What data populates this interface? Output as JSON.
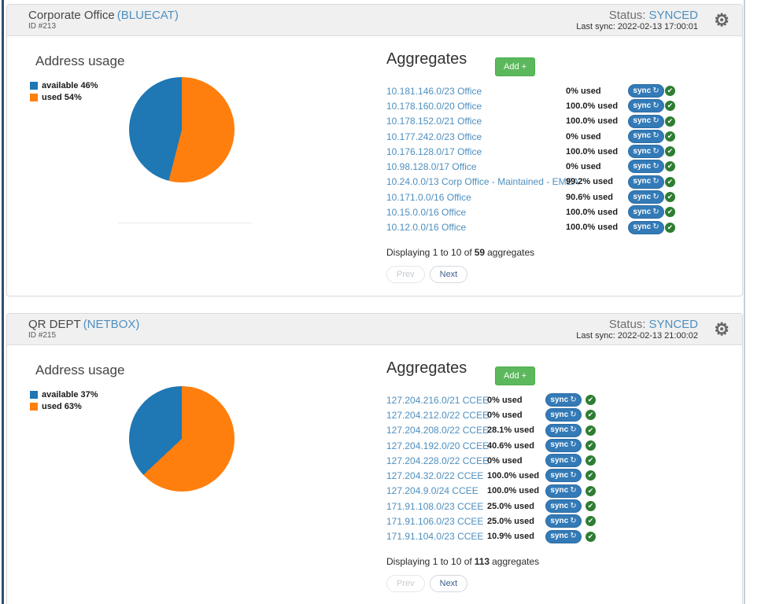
{
  "page": {
    "left_stripe_color": "#2f4f72",
    "right_stripe_color": "#bcd2e2",
    "accent_blue": "#4e8fbf",
    "sync_button_color": "#337ab7",
    "add_button_color": "#5cb85c",
    "check_color": "#2e7d32"
  },
  "labels": {
    "address_usage": "Address usage",
    "aggregates": "Aggregates",
    "add": "Add +",
    "sync": "sync",
    "status": "Status:",
    "prev": "Prev",
    "next": "Next"
  },
  "icons": {
    "sync": "↻",
    "gear": "⚙",
    "check": "✔"
  },
  "panels": [
    {
      "title": "Corporate Office",
      "source": "(BLUECAT)",
      "id": "ID #213",
      "status_value": "SYNCED",
      "last_sync": "Last sync: 2022-02-13 17:00:01",
      "chart": {
        "type": "pie",
        "available_pct": 46,
        "used_pct": 54,
        "available_color": "#1f77b4",
        "used_color": "#ff7f0e",
        "legend": [
          {
            "label": "available 46%",
            "color": "#1f77b4"
          },
          {
            "label": "used 54%",
            "color": "#ff7f0e"
          }
        ]
      },
      "aggregates": [
        {
          "address": "10.181.146.0/23 Office",
          "used": "0% used"
        },
        {
          "address": "10.178.160.0/20 Office",
          "used": "100.0% used"
        },
        {
          "address": "10.178.152.0/21 Office",
          "used": "100.0% used"
        },
        {
          "address": "10.177.242.0/23 Office",
          "used": "0% used"
        },
        {
          "address": "10.176.128.0/17 Office",
          "used": "100.0% used"
        },
        {
          "address": "10.98.128.0/17 Office",
          "used": "0% used"
        },
        {
          "address": "10.24.0.0/13 Corp Office - Maintained - EMEA",
          "used": "99.2% used"
        },
        {
          "address": "10.171.0.0/16 Office",
          "used": "90.6% used"
        },
        {
          "address": "10.15.0.0/16 Office",
          "used": "100.0% used"
        },
        {
          "address": "10.12.0.0/16 Office",
          "used": "100.0% used"
        }
      ],
      "pagination": {
        "prefix": "Displaying 1 to 10 of",
        "count": "59",
        "suffix": "aggregates"
      }
    },
    {
      "title": "QR DEPT",
      "source": "(NETBOX)",
      "id": "ID #215",
      "status_value": "SYNCED",
      "last_sync": "Last sync: 2022-02-13 21:00:02",
      "chart": {
        "type": "pie",
        "available_pct": 37,
        "used_pct": 63,
        "available_color": "#1f77b4",
        "used_color": "#ff7f0e",
        "legend": [
          {
            "label": "available 37%",
            "color": "#1f77b4"
          },
          {
            "label": "used 63%",
            "color": "#ff7f0e"
          }
        ]
      },
      "aggregates": [
        {
          "address": "127.204.216.0/21 CCEE",
          "used": "0% used"
        },
        {
          "address": "127.204.212.0/22 CCEE",
          "used": "0% used"
        },
        {
          "address": "127.204.208.0/22 CCEE",
          "used": "28.1% used"
        },
        {
          "address": "127.204.192.0/20 CCEE",
          "used": "40.6% used"
        },
        {
          "address": "127.204.228.0/22 CCEE",
          "used": "0% used"
        },
        {
          "address": "127.204.32.0/22 CCEE",
          "used": "100.0% used"
        },
        {
          "address": "127.204.9.0/24 CCEE",
          "used": "100.0% used"
        },
        {
          "address": "171.91.108.0/23 CCEE",
          "used": "25.0% used"
        },
        {
          "address": "171.91.106.0/23 CCEE",
          "used": "25.0% used"
        },
        {
          "address": "171.91.104.0/23 CCEE",
          "used": "10.9% used"
        }
      ],
      "pagination": {
        "prefix": "Displaying 1 to 10 of",
        "count": "113",
        "suffix": "aggregates"
      }
    }
  ]
}
